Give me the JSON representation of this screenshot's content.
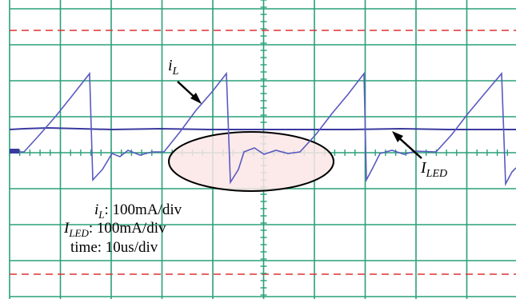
{
  "annotations": {
    "inductor_current": {
      "symbol": "i",
      "subscript": "L"
    },
    "led_current": {
      "symbol": "I",
      "subscript": "LED"
    }
  },
  "scales": [
    {
      "symbol": "i",
      "subscript": "L",
      "text": ": 100mA/div"
    },
    {
      "symbol": "I",
      "subscript": "LED",
      "text": ": 100mA/div"
    },
    {
      "symbol": "",
      "subscript": "",
      "text": "time: 10us/div"
    }
  ]
}
